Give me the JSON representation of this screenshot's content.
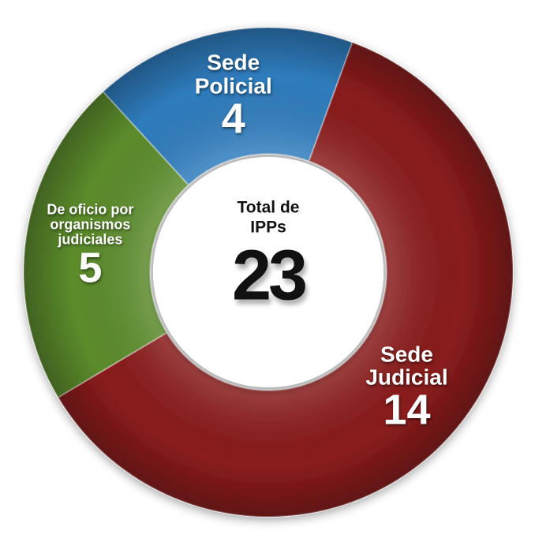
{
  "chart_data": {
    "type": "donut",
    "categories": [
      "Sede Policial",
      "Sede Judicial",
      "De oficio por organismos judiciales"
    ],
    "values": [
      4,
      14,
      5
    ],
    "colors": [
      "#2f7cbd",
      "#8a1c1c",
      "#5c8c2c"
    ],
    "center_label": "Total de IPPs",
    "center_value": 23
  }
}
